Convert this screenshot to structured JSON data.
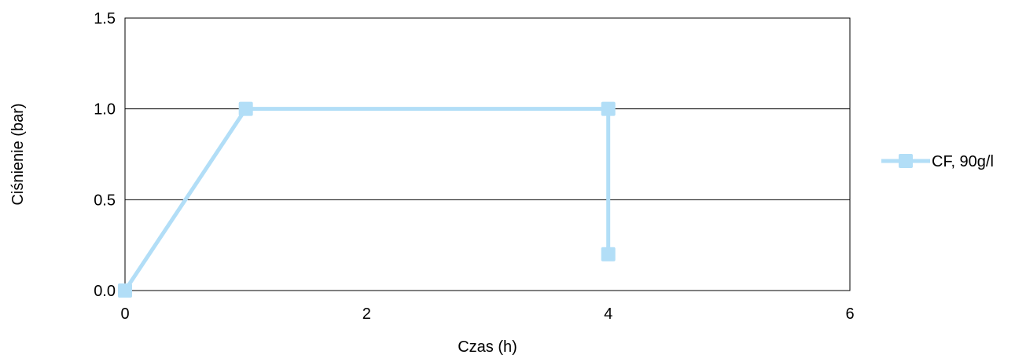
{
  "chart_data": {
    "type": "line",
    "xlabel": "Czas (h)",
    "ylabel": "Ciśnienie (bar)",
    "xlim": [
      0,
      6
    ],
    "ylim": [
      0,
      1.5
    ],
    "x_ticks": [
      "0",
      "2",
      "4",
      "6"
    ],
    "y_ticks": [
      "0.0",
      "0.5",
      "1.0",
      "1.5"
    ],
    "grid": "horizontal",
    "legend_position": "right",
    "series": [
      {
        "name": "CF, 90g/l",
        "color": "#b2def7",
        "marker": "square",
        "x": [
          0,
          1,
          4,
          4
        ],
        "y": [
          0,
          1.0,
          1.0,
          0.2
        ]
      }
    ]
  }
}
